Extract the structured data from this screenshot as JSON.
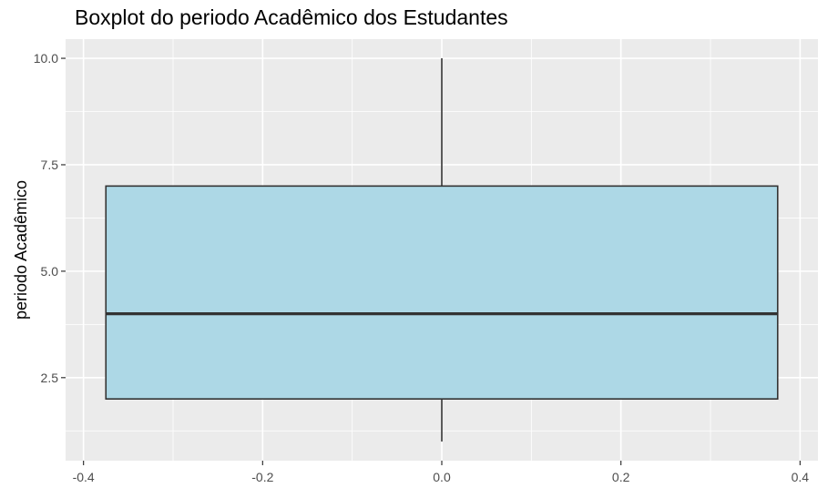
{
  "chart_data": {
    "type": "boxplot",
    "title": "Boxplot do periodo Acadêmico dos Estudantes",
    "xlabel": "",
    "ylabel": "periodo Acadêmico",
    "xlim": [
      -0.42,
      0.42
    ],
    "ylim": [
      0.55,
      10.45
    ],
    "x_ticks": [
      -0.4,
      -0.2,
      0.0,
      0.2,
      0.4
    ],
    "x_tick_labels": [
      "-0.4",
      "-0.2",
      "0.0",
      "0.2",
      "0.4"
    ],
    "y_ticks": [
      2.5,
      5.0,
      7.5,
      10.0
    ],
    "y_tick_labels": [
      "2.5",
      "5.0",
      "7.5",
      "10.0"
    ],
    "box": {
      "x_left": -0.375,
      "x_right": 0.375,
      "x_center": 0.0,
      "min": 1,
      "q1": 2,
      "median": 4,
      "q3": 7,
      "max": 10
    },
    "grid": true,
    "colors": {
      "panel_background": "#ebebeb",
      "grid": "#ffffff",
      "box_fill": "#add8e6",
      "box_outline": "#333333"
    }
  }
}
